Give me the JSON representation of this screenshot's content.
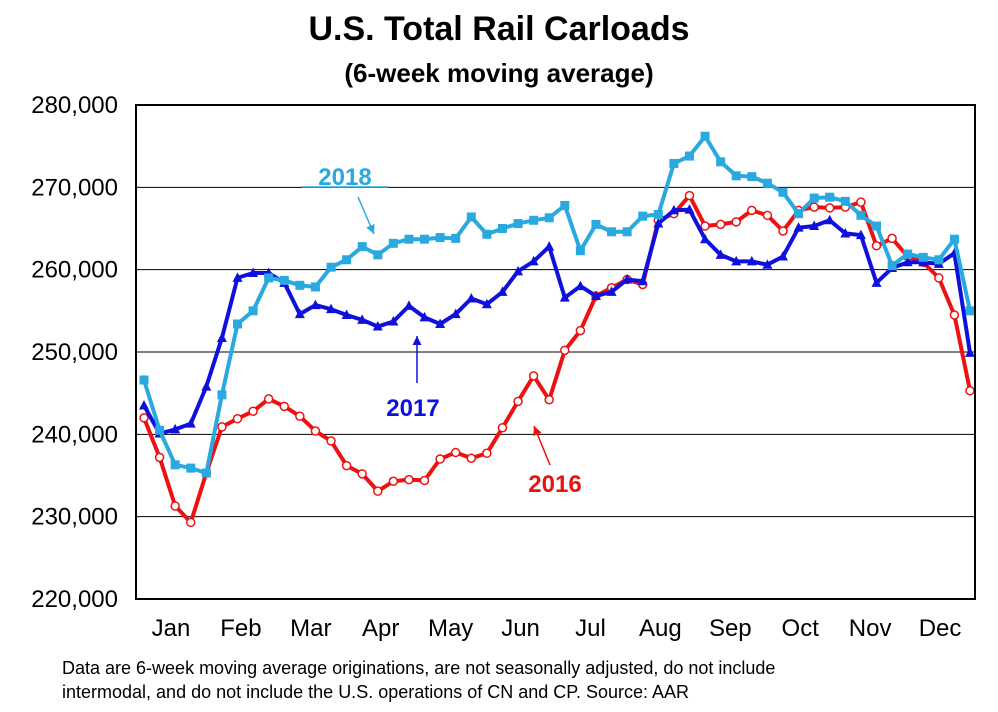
{
  "chart_data": {
    "type": "line",
    "title": "U.S. Total Rail Carloads",
    "subtitle": "(6-week moving average)",
    "xlabel": "",
    "ylabel": "",
    "ylim": [
      220000,
      280000
    ],
    "yticks": [
      220000,
      230000,
      240000,
      250000,
      260000,
      270000,
      280000
    ],
    "ytick_labels": [
      "220,000",
      "230,000",
      "240,000",
      "250,000",
      "260,000",
      "270,000",
      "280,000"
    ],
    "months": [
      "Jan",
      "Feb",
      "Mar",
      "Apr",
      "May",
      "Jun",
      "Jul",
      "Aug",
      "Sep",
      "Oct",
      "Nov",
      "Dec"
    ],
    "grid": true,
    "series": [
      {
        "name": "2018",
        "color": "#29A9E0",
        "marker": "square",
        "values": [
          246600,
          240500,
          236300,
          235900,
          235300,
          244800,
          253400,
          255000,
          259000,
          258700,
          258100,
          257900,
          260300,
          261200,
          262800,
          261800,
          263200,
          263700,
          263700,
          263900,
          263800,
          266400,
          264300,
          265000,
          265600,
          266000,
          266300,
          267800,
          262300,
          265500,
          264600,
          264600,
          266500,
          266700,
          272900,
          273800,
          276200,
          273100,
          271400,
          271300,
          270500,
          269400,
          266800,
          268700,
          268800,
          268300,
          266600,
          265300,
          260500,
          261900,
          261500,
          261200,
          263700,
          255000
        ]
      },
      {
        "name": "2017",
        "color": "#1010DD",
        "marker": "triangle",
        "values": [
          243500,
          240100,
          240600,
          241300,
          245800,
          251700,
          259000,
          259600,
          259600,
          258400,
          254600,
          255700,
          255200,
          254500,
          253900,
          253100,
          253700,
          255600,
          254200,
          253400,
          254600,
          256500,
          255800,
          257300,
          259800,
          261000,
          262800,
          256600,
          258000,
          256800,
          257300,
          258800,
          258600,
          265600,
          267200,
          267300,
          263700,
          261800,
          261000,
          261000,
          260600,
          261600,
          265100,
          265300,
          266000,
          264400,
          264200,
          258400,
          260200,
          260900,
          260900,
          260700,
          262000,
          249900
        ]
      },
      {
        "name": "2016",
        "color": "#EE1111",
        "marker": "circle",
        "values": [
          242000,
          237200,
          231300,
          229300,
          235300,
          240900,
          241900,
          242800,
          244300,
          243400,
          242200,
          240400,
          239200,
          236200,
          235200,
          233100,
          234300,
          234500,
          234400,
          237000,
          237800,
          237100,
          237700,
          240800,
          244000,
          247100,
          244200,
          250200,
          252600,
          256800,
          257800,
          258800,
          258200,
          266000,
          266800,
          269000,
          265300,
          265500,
          265800,
          267200,
          266600,
          264700,
          267200,
          267600,
          267500,
          267600,
          268200,
          262900,
          263800,
          261600,
          260900,
          259000,
          254500,
          245300
        ]
      }
    ],
    "annotations": [
      {
        "text": "2018",
        "color": "#29A9E0"
      },
      {
        "text": "2017",
        "color": "#1010DD"
      },
      {
        "text": "2016",
        "color": "#EE1111"
      }
    ],
    "footnote": "Data are 6-week moving average originations, are not seasonally adjusted, do not include\nintermodal, and do not include the U.S. operations of CN and CP.   Source: AAR"
  }
}
